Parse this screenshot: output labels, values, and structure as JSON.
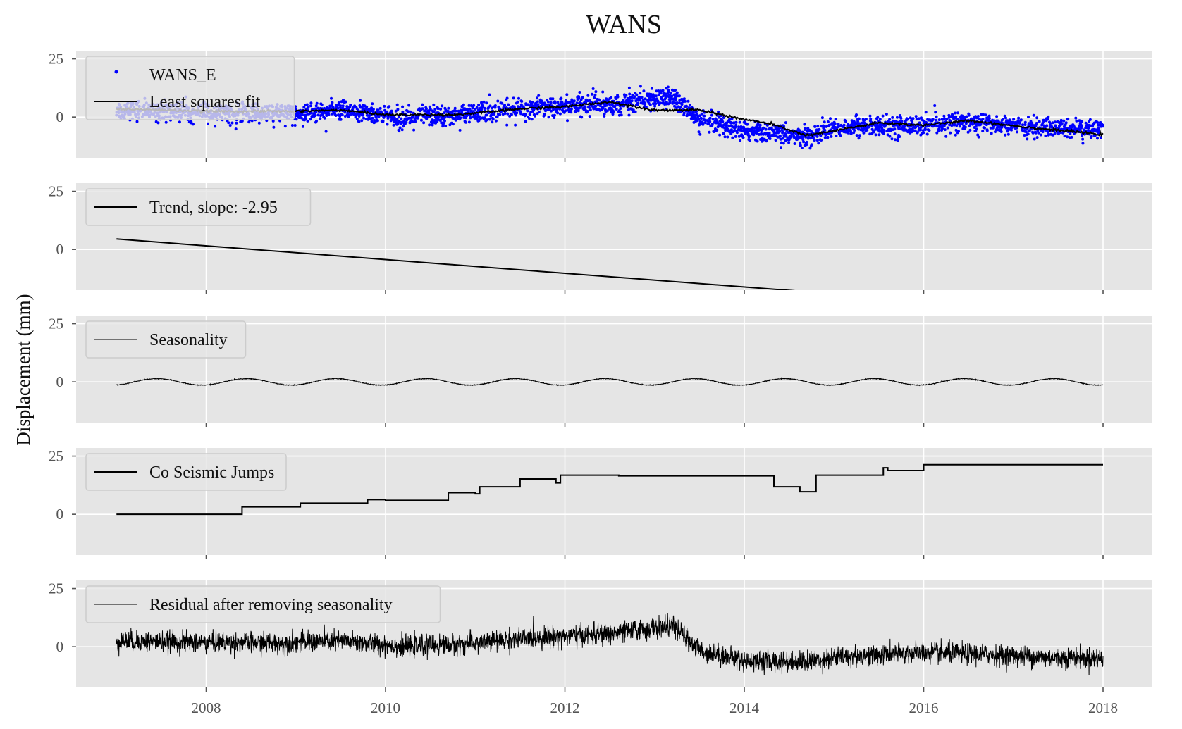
{
  "chart_data": {
    "type": "line",
    "title": "WANS",
    "ylabel": "Displacement (mm)",
    "xlabel": "",
    "xlim": [
      2006.55,
      2018.55
    ],
    "xticks": [
      2008,
      2010,
      2012,
      2014,
      2016,
      2018
    ],
    "xtick_labels": [
      "2008",
      "2010",
      "2012",
      "2014",
      "2016",
      "2018"
    ],
    "grid": true,
    "legend_placement": "upper-left",
    "panels": [
      {
        "id": "raw",
        "ylim": [
          -17.5,
          28.5
        ],
        "yticks": [
          0,
          25
        ],
        "ytick_labels": [
          "0",
          "25"
        ],
        "series": [
          {
            "name": "WANS_E",
            "style": "points",
            "color": "#0000ff",
            "trend": [
              [
                2007.0,
                3.0
              ],
              [
                2008.8,
                1.5
              ],
              [
                2009.5,
                2.5
              ],
              [
                2010.2,
                0.0
              ],
              [
                2010.8,
                1.0
              ],
              [
                2011.7,
                4.0
              ],
              [
                2012.5,
                5.5
              ],
              [
                2013.2,
                8.5
              ],
              [
                2013.5,
                -2.0
              ],
              [
                2014.0,
                -6.0
              ],
              [
                2014.7,
                -8.5
              ],
              [
                2015.0,
                -4.5
              ],
              [
                2016.0,
                -3.5
              ],
              [
                2016.5,
                -2.0
              ],
              [
                2017.3,
                -4.5
              ],
              [
                2018.0,
                -5.0
              ]
            ],
            "noise": 3.0
          },
          {
            "name": "Least squares fit",
            "style": "line",
            "color": "#000000",
            "points": [
              [
                2007.0,
                3.5
              ],
              [
                2008.0,
                2.5
              ],
              [
                2009.0,
                2.5
              ],
              [
                2009.5,
                3.0
              ],
              [
                2010.0,
                1.0
              ],
              [
                2010.8,
                1.0
              ],
              [
                2011.5,
                3.5
              ],
              [
                2012.0,
                4.5
              ],
              [
                2012.5,
                6.5
              ],
              [
                2013.0,
                3.0
              ],
              [
                2013.5,
                3.0
              ],
              [
                2014.0,
                -1.0
              ],
              [
                2014.3,
                -3.0
              ],
              [
                2014.7,
                -8.0
              ],
              [
                2015.5,
                -2.5
              ],
              [
                2016.0,
                -3.5
              ],
              [
                2016.5,
                -1.5
              ],
              [
                2017.3,
                -5.0
              ],
              [
                2018.0,
                -7.5
              ]
            ]
          }
        ]
      },
      {
        "id": "trend",
        "ylim": [
          -17.5,
          28.5
        ],
        "yticks": [
          0,
          25
        ],
        "ytick_labels": [
          "0",
          "25"
        ],
        "series": [
          {
            "name": "Trend, slope: -2.95",
            "style": "line",
            "color": "#000000",
            "points": [
              [
                2007.0,
                4.5
              ],
              [
                2018.0,
                -27.9
              ]
            ]
          }
        ]
      },
      {
        "id": "seasonality",
        "ylim": [
          -17.5,
          28.5
        ],
        "yticks": [
          0,
          25
        ],
        "ytick_labels": [
          "0",
          "25"
        ],
        "series": [
          {
            "name": "Seasonality",
            "style": "seasonal",
            "color": "#000000",
            "x_start": 2007.0,
            "x_end": 2018.0,
            "amplitude": 1.4,
            "phase_peak": 0.45
          }
        ]
      },
      {
        "id": "jumps",
        "ylim": [
          -17.5,
          28.5
        ],
        "yticks": [
          0,
          25
        ],
        "ytick_labels": [
          "0",
          "25"
        ],
        "series": [
          {
            "name": "Co Seismic Jumps",
            "style": "step",
            "color": "#000000",
            "points": [
              [
                2007.0,
                0.0
              ],
              [
                2008.4,
                3.2
              ],
              [
                2009.05,
                4.8
              ],
              [
                2009.8,
                6.3
              ],
              [
                2010.0,
                6.0
              ],
              [
                2010.7,
                9.3
              ],
              [
                2011.0,
                8.8
              ],
              [
                2011.05,
                11.8
              ],
              [
                2011.5,
                15.2
              ],
              [
                2011.9,
                13.5
              ],
              [
                2011.95,
                16.8
              ],
              [
                2012.6,
                16.5
              ],
              [
                2014.33,
                11.8
              ],
              [
                2014.62,
                9.7
              ],
              [
                2014.8,
                16.8
              ],
              [
                2015.55,
                20.0
              ],
              [
                2015.6,
                18.8
              ],
              [
                2016.0,
                21.3
              ],
              [
                2018.0,
                21.3
              ]
            ]
          }
        ]
      },
      {
        "id": "residual",
        "ylim": [
          -17.5,
          28.5
        ],
        "yticks": [
          0,
          25
        ],
        "ytick_labels": [
          "0",
          "25"
        ],
        "series": [
          {
            "name": "Residual after removing seasonality",
            "style": "noisy-line",
            "color": "#000000",
            "trend": [
              [
                2007.0,
                2.5
              ],
              [
                2008.8,
                1.5
              ],
              [
                2009.5,
                2.5
              ],
              [
                2010.2,
                0.0
              ],
              [
                2010.8,
                1.0
              ],
              [
                2011.7,
                4.0
              ],
              [
                2012.5,
                5.5
              ],
              [
                2013.2,
                9.0
              ],
              [
                2013.5,
                -1.5
              ],
              [
                2014.0,
                -6.0
              ],
              [
                2014.7,
                -6.5
              ],
              [
                2015.0,
                -4.5
              ],
              [
                2016.0,
                -2.5
              ],
              [
                2016.5,
                -3.0
              ],
              [
                2017.3,
                -4.5
              ],
              [
                2018.0,
                -5.0
              ]
            ],
            "noise": 2.2
          }
        ]
      }
    ]
  }
}
